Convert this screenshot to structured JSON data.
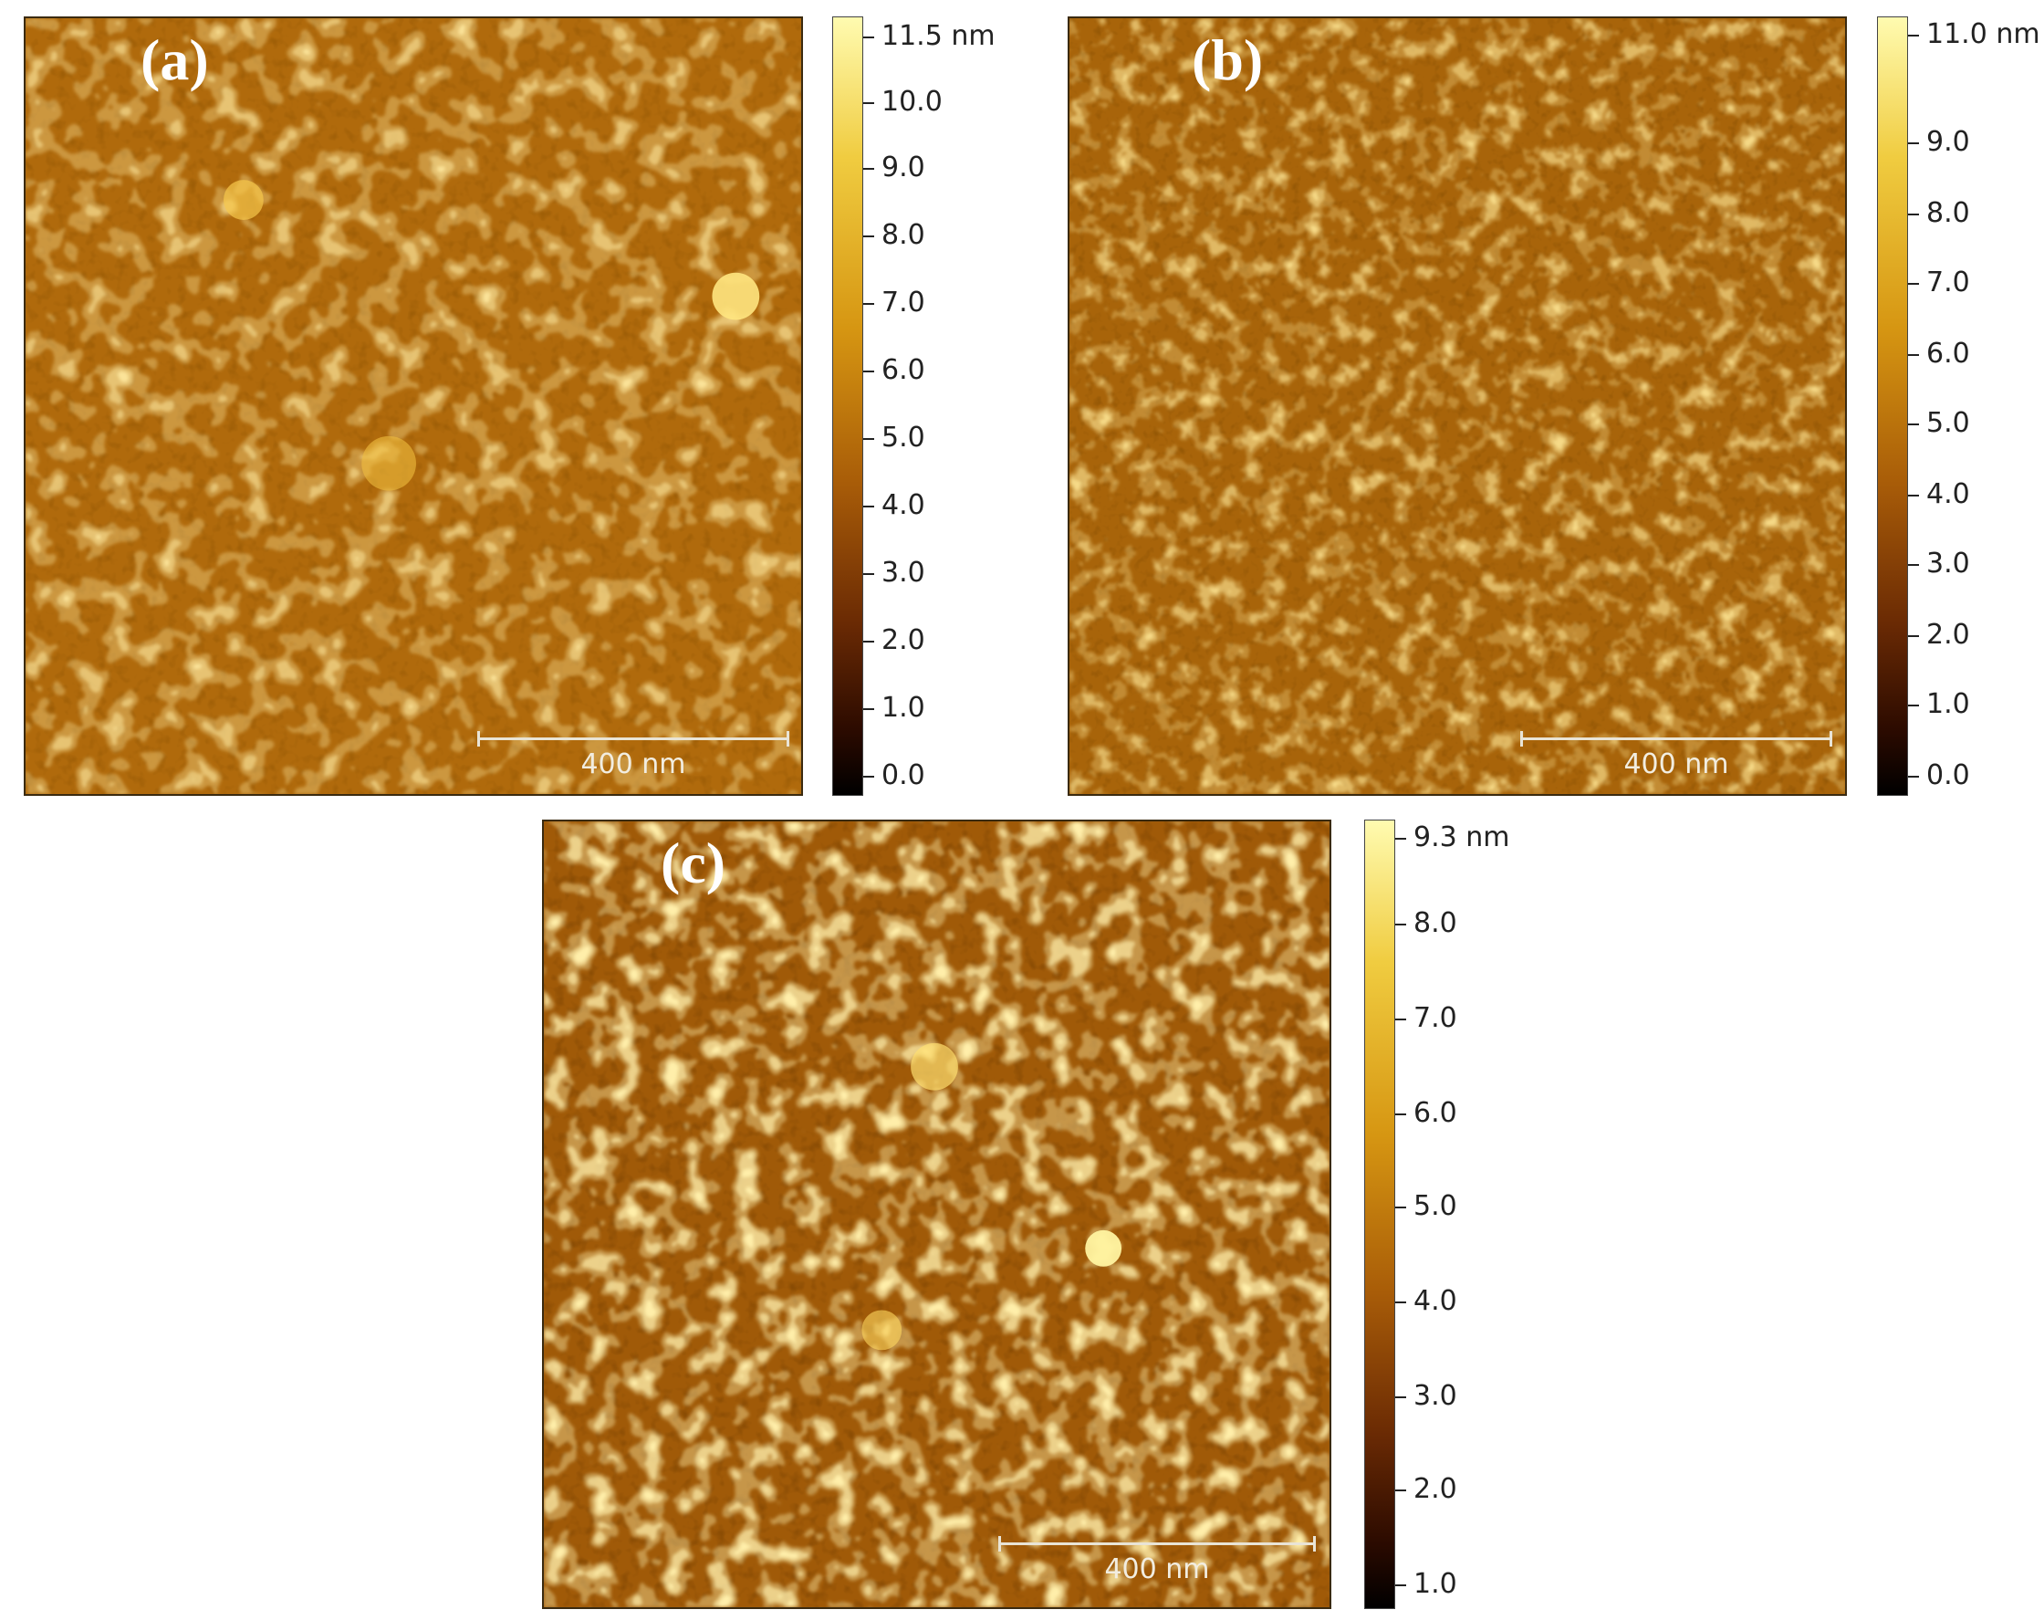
{
  "panels": {
    "a": {
      "label": "(a)",
      "scalebar": "400 nm",
      "colorbar": [
        "11.5 nm",
        "10.0",
        "9.0",
        "8.0",
        "7.0",
        "6.0",
        "5.0",
        "4.0",
        "3.0",
        "2.0",
        "1.0",
        "0.0"
      ]
    },
    "b": {
      "label": "(b)",
      "scalebar": "400 nm",
      "colorbar": [
        "11.0 nm",
        "9.0",
        "8.0",
        "7.0",
        "6.0",
        "5.0",
        "4.0",
        "3.0",
        "2.0",
        "1.0",
        "0.0"
      ]
    },
    "c": {
      "label": "(c)",
      "scalebar": "400 nm",
      "colorbar": [
        "9.3 nm",
        "8.0",
        "7.0",
        "6.0",
        "5.0",
        "4.0",
        "3.0",
        "2.0",
        "1.0"
      ]
    }
  },
  "colors": {
    "low": "#000000",
    "mid": "#b8700a",
    "high": "#fffbb0"
  }
}
